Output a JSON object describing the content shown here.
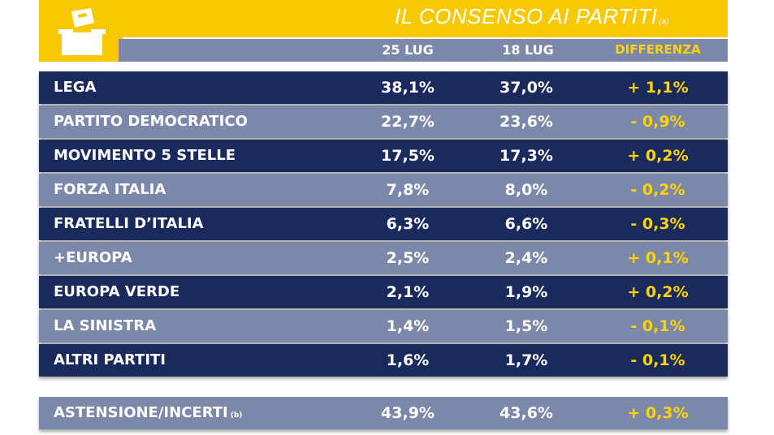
{
  "header": {
    "title": "IL CONSENSO AI PARTITI",
    "title_note": "(a)"
  },
  "columns": {
    "c1": "25 LUG",
    "c2": "18 LUG",
    "diff": "DIFFERENZA"
  },
  "colors": {
    "dark_row": "#1b2a5c",
    "light_row": "#7b88aa",
    "accent": "#f8c800",
    "diff_text": "#ffd400"
  },
  "rows": [
    {
      "party": "LEGA",
      "c1": "38,1%",
      "c2": "37,0%",
      "diff": "+ 1,1%"
    },
    {
      "party": "PARTITO DEMOCRATICO",
      "c1": "22,7%",
      "c2": "23,6%",
      "diff": "- 0,9%"
    },
    {
      "party": "MOVIMENTO 5 STELLE",
      "c1": "17,5%",
      "c2": "17,3%",
      "diff": "+ 0,2%"
    },
    {
      "party": "FORZA ITALIA",
      "c1": "7,8%",
      "c2": "8,0%",
      "diff": "- 0,2%"
    },
    {
      "party": "FRATELLI D’ITALIA",
      "c1": "6,3%",
      "c2": "6,6%",
      "diff": "- 0,3%"
    },
    {
      "party": "+EUROPA",
      "c1": "2,5%",
      "c2": "2,4%",
      "diff": "+ 0,1%"
    },
    {
      "party": "EUROPA VERDE",
      "c1": "2,1%",
      "c2": "1,9%",
      "diff": "+ 0,2%"
    },
    {
      "party": "LA SINISTRA",
      "c1": "1,4%",
      "c2": "1,5%",
      "diff": "- 0,1%"
    },
    {
      "party": "ALTRI PARTITI",
      "c1": "1,6%",
      "c2": "1,7%",
      "diff": "- 0,1%"
    }
  ],
  "footer_row": {
    "party": "ASTENSIONE/INCERTI",
    "party_note": "(b)",
    "c1": "43,9%",
    "c2": "43,6%",
    "diff": "+ 0,3%"
  },
  "chart_data": {
    "type": "table",
    "title": "IL CONSENSO AI PARTITI",
    "columns": [
      "25 LUG",
      "18 LUG",
      "DIFFERENZA"
    ],
    "categories": [
      "LEGA",
      "PARTITO DEMOCRATICO",
      "MOVIMENTO 5 STELLE",
      "FORZA ITALIA",
      "FRATELLI D’ITALIA",
      "+EUROPA",
      "EUROPA VERDE",
      "LA SINISTRA",
      "ALTRI PARTITI",
      "ASTENSIONE/INCERTI"
    ],
    "series": [
      {
        "name": "25 LUG",
        "values": [
          38.1,
          22.7,
          17.5,
          7.8,
          6.3,
          2.5,
          2.1,
          1.4,
          1.6,
          43.9
        ]
      },
      {
        "name": "18 LUG",
        "values": [
          37.0,
          23.6,
          17.3,
          8.0,
          6.6,
          2.4,
          1.9,
          1.5,
          1.7,
          43.6
        ]
      },
      {
        "name": "DIFFERENZA",
        "values": [
          1.1,
          -0.9,
          0.2,
          -0.2,
          -0.3,
          0.1,
          0.2,
          -0.1,
          -0.1,
          0.3
        ]
      }
    ]
  }
}
